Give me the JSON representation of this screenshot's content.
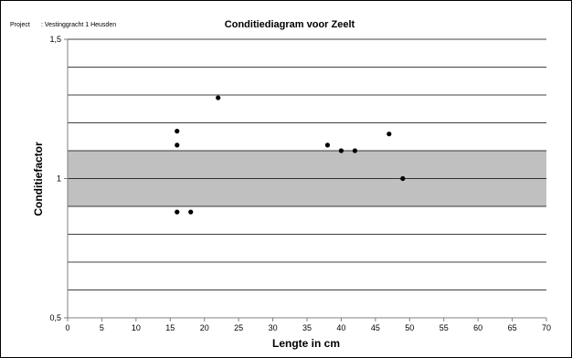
{
  "header": {
    "project_label": "Project",
    "project_value": ": Vestinggracht 1 Heusden"
  },
  "chart_data": {
    "type": "scatter",
    "title": "Conditiediagram voor Zeelt",
    "xlabel": "Lengte in cm",
    "ylabel": "Conditiefactor",
    "xlim": [
      0,
      70
    ],
    "ylim": [
      0.5,
      1.5
    ],
    "x_ticks": [
      0,
      5,
      10,
      15,
      20,
      25,
      30,
      35,
      40,
      45,
      50,
      55,
      60,
      65,
      70
    ],
    "x_tick_labels": [
      "0",
      "5",
      "10",
      "15",
      "20",
      "25",
      "30",
      "35",
      "40",
      "45",
      "50",
      "55",
      "60",
      "65",
      "70"
    ],
    "y_ticks": [
      0.5,
      1,
      1.5
    ],
    "y_tick_labels": [
      "0,5",
      "1",
      "1,5"
    ],
    "gridlines_y": [
      0.6,
      0.7,
      0.8,
      0.9,
      1.0,
      1.1,
      1.2,
      1.3,
      1.4,
      1.5
    ],
    "grid": true,
    "shaded_band": {
      "from": 0.9,
      "to": 1.1,
      "color": "#c0c0c0"
    },
    "points": [
      {
        "x": 16,
        "y": 1.17
      },
      {
        "x": 16,
        "y": 1.12
      },
      {
        "x": 16,
        "y": 0.88
      },
      {
        "x": 18,
        "y": 0.88
      },
      {
        "x": 22,
        "y": 1.29
      },
      {
        "x": 38,
        "y": 1.12
      },
      {
        "x": 40,
        "y": 1.1
      },
      {
        "x": 42,
        "y": 1.1
      },
      {
        "x": 47,
        "y": 1.16
      },
      {
        "x": 49,
        "y": 1.0
      }
    ],
    "marker_color": "#000000"
  }
}
